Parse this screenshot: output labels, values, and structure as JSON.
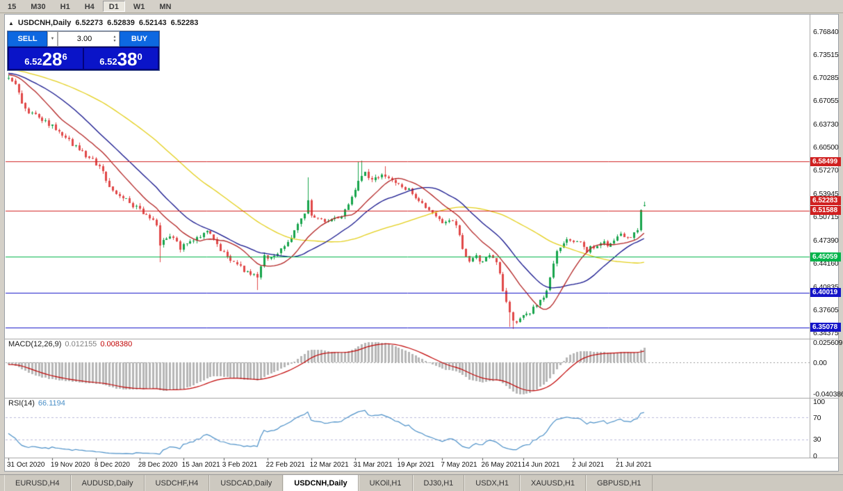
{
  "toolbar": {
    "timeframes": [
      "15",
      "M30",
      "H1",
      "H4",
      "D1",
      "W1",
      "MN"
    ],
    "active": "D1"
  },
  "chart": {
    "symbol": "USDCNH,Daily",
    "open": "6.52273",
    "high": "6.52839",
    "low": "6.52143",
    "close": "6.52283",
    "collapse_icon": "▲"
  },
  "trade_panel": {
    "sell_label": "SELL",
    "buy_label": "BUY",
    "volume": "3.00",
    "bid_big": "6.52",
    "bid_mid": "28",
    "bid_sup": "6",
    "ask_big": "6.52",
    "ask_mid": "38",
    "ask_sup": "0"
  },
  "price_scale": [
    "6.76840",
    "6.73515",
    "6.70285",
    "6.67055",
    "6.63730",
    "6.60500",
    "6.57270",
    "6.53945",
    "6.50715",
    "6.47390",
    "6.44160",
    "6.40835",
    "6.37605",
    "6.34375"
  ],
  "levels": [
    {
      "price": 6.58499,
      "label": "6.58499",
      "color": "#d02020"
    },
    {
      "price": 6.51588,
      "label": "6.51588",
      "color": "#d02020"
    },
    {
      "price": 6.45059,
      "label": "6.45059",
      "color": "#00b44a"
    },
    {
      "price": 6.40019,
      "label": "6.40019",
      "color": "#1414c8"
    },
    {
      "price": 6.35078,
      "label": "6.35078",
      "color": "#1414c8"
    }
  ],
  "current_price_tag": {
    "label": "6.52283",
    "price": 6.52283,
    "color": "#d02020"
  },
  "macd": {
    "name": "MACD(12,26,9)",
    "main_value": "0.012155",
    "signal_value": "0.008380",
    "scale": [
      "0.025609",
      "0.00",
      "-0.040386"
    ],
    "fast": 12,
    "slow": 26,
    "signal_period": 9,
    "histogram_color": "#b6b6b6",
    "signal_color": "#c00000"
  },
  "rsi": {
    "name": "RSI(14)",
    "value": "66.1194",
    "scale": [
      "100",
      "70",
      "30",
      "0"
    ],
    "period": 14,
    "line_color": "#4a8fc7",
    "levels": [
      70,
      30
    ],
    "level_color": "#b9b9d8"
  },
  "tabs": [
    {
      "label": "EURUSD,H4",
      "active": false
    },
    {
      "label": "AUDUSD,Daily",
      "active": false
    },
    {
      "label": "USDCHF,H4",
      "active": false
    },
    {
      "label": "USDCAD,Daily",
      "active": false
    },
    {
      "label": "USDCNH,Daily",
      "active": true
    },
    {
      "label": "UKOil,H1",
      "active": false
    },
    {
      "label": "DJ30,H1",
      "active": false
    },
    {
      "label": "USDX,H1",
      "active": false
    },
    {
      "label": "XAUUSD,H1",
      "active": false
    },
    {
      "label": "GBPUSD,H1",
      "active": false
    }
  ],
  "chart_data": {
    "type": "candlestick",
    "symbol": "USDCNH",
    "timeframe": "Daily",
    "bars_total": 190,
    "price_axis_range": [
      6.335,
      6.793
    ],
    "up_color": "#18a44c",
    "down_color": "#e04848",
    "anchors": [
      [
        -60,
        6.725
      ],
      [
        -35,
        6.718
      ],
      [
        -15,
        6.71
      ],
      [
        0,
        6.705
      ],
      [
        2,
        6.692
      ],
      [
        4,
        6.668
      ],
      [
        6,
        6.655
      ],
      [
        9,
        6.648
      ],
      [
        12,
        6.638
      ],
      [
        14,
        6.63
      ],
      [
        16,
        6.622
      ],
      [
        18,
        6.614
      ],
      [
        20,
        6.606
      ],
      [
        23,
        6.593
      ],
      [
        26,
        6.583
      ],
      [
        28,
        6.568
      ],
      [
        30,
        6.553
      ],
      [
        32,
        6.541
      ],
      [
        34,
        6.533
      ],
      [
        36,
        6.527
      ],
      [
        38,
        6.52
      ],
      [
        40,
        6.513
      ],
      [
        42,
        6.507
      ],
      [
        44,
        6.497
      ],
      [
        45,
        6.465
      ],
      [
        46,
        6.473
      ],
      [
        48,
        6.478
      ],
      [
        50,
        6.47
      ],
      [
        51,
        6.463
      ],
      [
        53,
        6.467
      ],
      [
        55,
        6.473
      ],
      [
        57,
        6.479
      ],
      [
        59,
        6.486
      ],
      [
        61,
        6.474
      ],
      [
        63,
        6.462
      ],
      [
        64,
        6.455
      ],
      [
        66,
        6.446
      ],
      [
        68,
        6.438
      ],
      [
        70,
        6.432
      ],
      [
        72,
        6.428
      ],
      [
        74,
        6.421
      ],
      [
        75,
        6.438
      ],
      [
        76,
        6.45
      ],
      [
        78,
        6.452
      ],
      [
        80,
        6.455
      ],
      [
        82,
        6.463
      ],
      [
        84,
        6.479
      ],
      [
        86,
        6.496
      ],
      [
        88,
        6.509
      ],
      [
        89,
        6.53
      ],
      [
        90,
        6.511
      ],
      [
        92,
        6.503
      ],
      [
        94,
        6.498
      ],
      [
        96,
        6.501
      ],
      [
        98,
        6.507
      ],
      [
        100,
        6.514
      ],
      [
        102,
        6.532
      ],
      [
        104,
        6.558
      ],
      [
        106,
        6.572
      ],
      [
        108,
        6.557
      ],
      [
        110,
        6.562
      ],
      [
        112,
        6.567
      ],
      [
        114,
        6.559
      ],
      [
        116,
        6.551
      ],
      [
        118,
        6.546
      ],
      [
        120,
        6.541
      ],
      [
        122,
        6.531
      ],
      [
        124,
        6.521
      ],
      [
        126,
        6.509
      ],
      [
        128,
        6.501
      ],
      [
        130,
        6.498
      ],
      [
        132,
        6.504
      ],
      [
        133,
        6.492
      ],
      [
        134,
        6.479
      ],
      [
        135,
        6.463
      ],
      [
        136,
        6.452
      ],
      [
        137,
        6.444
      ],
      [
        139,
        6.451
      ],
      [
        141,
        6.443
      ],
      [
        143,
        6.453
      ],
      [
        145,
        6.441
      ],
      [
        146,
        6.426
      ],
      [
        147,
        6.406
      ],
      [
        148,
        6.387
      ],
      [
        149,
        6.37
      ],
      [
        150,
        6.361
      ],
      [
        151,
        6.357
      ],
      [
        153,
        6.366
      ],
      [
        155,
        6.374
      ],
      [
        157,
        6.384
      ],
      [
        159,
        6.396
      ],
      [
        160,
        6.402
      ],
      [
        161,
        6.42
      ],
      [
        162,
        6.44
      ],
      [
        163,
        6.455
      ],
      [
        164,
        6.466
      ],
      [
        166,
        6.478
      ],
      [
        168,
        6.474
      ],
      [
        170,
        6.468
      ],
      [
        172,
        6.459
      ],
      [
        174,
        6.466
      ],
      [
        176,
        6.472
      ],
      [
        178,
        6.467
      ],
      [
        180,
        6.476
      ],
      [
        182,
        6.481
      ],
      [
        184,
        6.477
      ],
      [
        186,
        6.482
      ],
      [
        187,
        6.487
      ],
      [
        188,
        6.516
      ],
      [
        189,
        6.5228
      ]
    ],
    "spikes": [
      {
        "bar": 45,
        "low": 6.443
      },
      {
        "bar": 74,
        "low": 6.404
      },
      {
        "bar": 89,
        "high": 6.563
      },
      {
        "bar": 104,
        "high": 6.584
      },
      {
        "bar": 105,
        "high": 6.586
      },
      {
        "bar": 112,
        "high": 6.578
      },
      {
        "bar": 149,
        "low": 6.352
      },
      {
        "bar": 150,
        "low": 6.349
      }
    ],
    "last_candle": {
      "open": 6.52273,
      "high": 6.52839,
      "low": 6.52143,
      "close": 6.52283
    },
    "mas": [
      {
        "period": 55,
        "color": "#e3cf1c"
      },
      {
        "period": 25,
        "color": "#14148c"
      },
      {
        "period": 13,
        "color": "#b22222"
      }
    ],
    "date_ticks": [
      {
        "label": "31 Oct 2020",
        "bar": 0
      },
      {
        "label": "19 Nov 2020",
        "bar": 13
      },
      {
        "label": "8 Dec 2020",
        "bar": 26
      },
      {
        "label": "28 Dec 2020",
        "bar": 39
      },
      {
        "label": "15 Jan 2021",
        "bar": 52
      },
      {
        "label": "3 Feb 2021",
        "bar": 64
      },
      {
        "label": "22 Feb 2021",
        "bar": 77
      },
      {
        "label": "12 Mar 2021",
        "bar": 90
      },
      {
        "label": "31 Mar 2021",
        "bar": 103
      },
      {
        "label": "19 Apr 2021",
        "bar": 116
      },
      {
        "label": "7 May 2021",
        "bar": 129
      },
      {
        "label": "26 May 2021",
        "bar": 141
      },
      {
        "label": "14 Jun 2021",
        "bar": 153
      },
      {
        "label": "2 Jul 2021",
        "bar": 168
      },
      {
        "label": "21 Jul 2021",
        "bar": 181
      }
    ]
  }
}
